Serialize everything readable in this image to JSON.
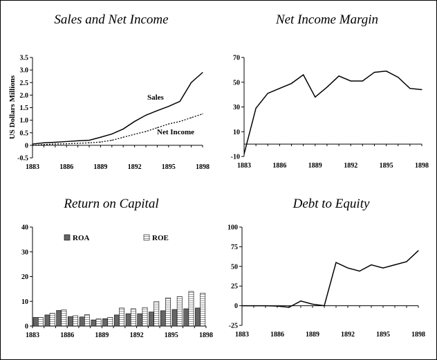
{
  "chart_data": [
    {
      "id": "sales",
      "type": "line",
      "title": "Sales and Net Income",
      "ylabel": "US Dollars Millions",
      "xlim": [
        1883,
        1898
      ],
      "ylim": [
        -0.5,
        3.5
      ],
      "x_ticks": [
        1883,
        1886,
        1889,
        1892,
        1895,
        1898
      ],
      "y_ticks": [
        -0.5,
        0,
        0.5,
        1,
        1.5,
        2,
        2.5,
        3,
        3.5
      ],
      "y_tick_labels": [
        "-0.5",
        "0",
        "0.5",
        "1.0",
        "1.5",
        "2.0",
        "2.5",
        "3.0",
        "3.5"
      ],
      "series": [
        {
          "name": "Sales",
          "style": "solid",
          "x": [
            1883,
            1884,
            1885,
            1886,
            1887,
            1888,
            1889,
            1890,
            1891,
            1892,
            1893,
            1894,
            1895,
            1896,
            1897,
            1898
          ],
          "y": [
            0.05,
            0.1,
            0.12,
            0.15,
            0.18,
            0.2,
            0.32,
            0.45,
            0.65,
            0.95,
            1.2,
            1.38,
            1.55,
            1.75,
            2.5,
            2.9
          ]
        },
        {
          "name": "Net Income",
          "style": "dotted",
          "x": [
            1883,
            1884,
            1885,
            1886,
            1887,
            1888,
            1889,
            1890,
            1891,
            1892,
            1893,
            1894,
            1895,
            1896,
            1897,
            1898
          ],
          "y": [
            0.0,
            0.03,
            0.05,
            0.06,
            0.08,
            0.1,
            0.13,
            0.2,
            0.32,
            0.44,
            0.55,
            0.7,
            0.85,
            0.95,
            1.1,
            1.25
          ]
        }
      ]
    },
    {
      "id": "margin",
      "type": "line",
      "title": "Net Income Margin",
      "xlim": [
        1883,
        1898
      ],
      "ylim": [
        -10,
        70
      ],
      "x_ticks": [
        1883,
        1886,
        1889,
        1892,
        1895,
        1898
      ],
      "y_ticks": [
        -10,
        10,
        30,
        50,
        70
      ],
      "y_tick_labels": [
        "-10",
        "10",
        "30",
        "50",
        "70"
      ],
      "series": [
        {
          "style": "solid",
          "x": [
            1883,
            1884,
            1885,
            1886,
            1887,
            1888,
            1889,
            1890,
            1891,
            1892,
            1893,
            1894,
            1895,
            1896,
            1897,
            1898
          ],
          "y": [
            -8,
            29,
            41,
            45,
            49,
            56,
            38,
            46,
            55,
            51,
            51,
            58,
            59,
            54,
            45,
            44
          ]
        }
      ]
    },
    {
      "id": "roc",
      "type": "bar",
      "title": "Return on Capital",
      "xlim": [
        1883,
        1898
      ],
      "ylim": [
        0,
        40
      ],
      "x_ticks": [
        1883,
        1886,
        1889,
        1892,
        1895,
        1898
      ],
      "y_ticks": [
        0,
        10,
        20,
        30,
        40
      ],
      "y_tick_labels": [
        "0",
        "10",
        "20",
        "30",
        "40"
      ],
      "legend_position": "top",
      "categories": [
        1884,
        1885,
        1886,
        1887,
        1888,
        1889,
        1890,
        1891,
        1892,
        1893,
        1894,
        1895,
        1896,
        1897,
        1898
      ],
      "series": [
        {
          "name": "ROA",
          "values": [
            3.5,
            4.5,
            6.3,
            3.8,
            3.7,
            2.5,
            3.0,
            4.5,
            5.0,
            5.0,
            5.7,
            6.2,
            6.7,
            7.0,
            7.3
          ]
        },
        {
          "name": "ROE",
          "values": [
            3.5,
            5.2,
            6.5,
            4.2,
            4.6,
            2.9,
            3.5,
            7.3,
            7.0,
            7.5,
            9.9,
            11.4,
            11.9,
            14.0,
            13.3
          ]
        }
      ]
    },
    {
      "id": "debt",
      "type": "line",
      "title": "Debt to Equity",
      "xlim": [
        1883,
        1898
      ],
      "ylim": [
        -25,
        100
      ],
      "x_ticks": [
        1883,
        1886,
        1889,
        1892,
        1895,
        1898
      ],
      "y_ticks": [
        -25,
        0,
        25,
        50,
        75,
        100
      ],
      "y_tick_labels": [
        "-25",
        "0",
        "25",
        "50",
        "75",
        "100"
      ],
      "series": [
        {
          "style": "solid",
          "x": [
            1883,
            1884,
            1885,
            1886,
            1887,
            1888,
            1889,
            1890,
            1891,
            1892,
            1893,
            1894,
            1895,
            1896,
            1897,
            1898
          ],
          "y": [
            0,
            0,
            0,
            -0.5,
            -2,
            6,
            2,
            0,
            55,
            48,
            44,
            52,
            48,
            52,
            56,
            70
          ]
        }
      ]
    }
  ]
}
